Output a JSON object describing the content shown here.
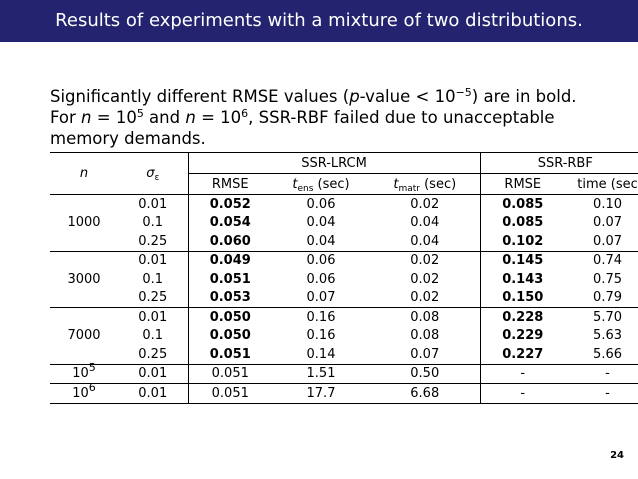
{
  "header": {
    "title": "Results of experiments with a mixture of two distributions."
  },
  "intro": {
    "lines": [
      [
        "Significantly different RMSE values (",
        "p",
        "-value < 10",
        "−5",
        ") are in bold."
      ],
      [
        "For ",
        "n",
        " = 10",
        "5",
        " and ",
        "n",
        " = 10",
        "6",
        ", SSR-RBF failed due to unacceptable"
      ],
      [
        "memory demands."
      ]
    ]
  },
  "table": {
    "header": {
      "n": "n",
      "sigma": [
        "σ",
        "ε"
      ],
      "groups": [
        "SSR-LRCM",
        "SSR-RBF"
      ],
      "columns": [
        [
          "RMSE"
        ],
        [
          "t",
          "ens",
          " (sec)"
        ],
        [
          "t",
          "matr",
          " (sec)"
        ],
        [
          "RMSE"
        ],
        [
          "time (sec"
        ]
      ]
    },
    "row_groups": [
      {
        "n": "1000",
        "bold_columns": [
          1,
          4
        ],
        "rows": [
          [
            "0.01",
            "0.052",
            "0.06",
            "0.02",
            "0.085",
            "0.10"
          ],
          [
            "0.1",
            "0.054",
            "0.04",
            "0.04",
            "0.085",
            "0.07"
          ],
          [
            "0.25",
            "0.060",
            "0.04",
            "0.04",
            "0.102",
            "0.07"
          ]
        ]
      },
      {
        "n": "3000",
        "bold_columns": [
          1,
          4
        ],
        "rows": [
          [
            "0.01",
            "0.049",
            "0.06",
            "0.02",
            "0.145",
            "0.74"
          ],
          [
            "0.1",
            "0.051",
            "0.06",
            "0.02",
            "0.143",
            "0.75"
          ],
          [
            "0.25",
            "0.053",
            "0.07",
            "0.02",
            "0.150",
            "0.79"
          ]
        ]
      },
      {
        "n": "7000",
        "bold_columns": [
          1,
          4
        ],
        "rows": [
          [
            "0.01",
            "0.050",
            "0.16",
            "0.08",
            "0.228",
            "5.70"
          ],
          [
            "0.1",
            "0.050",
            "0.16",
            "0.08",
            "0.229",
            "5.63"
          ],
          [
            "0.25",
            "0.051",
            "0.14",
            "0.07",
            "0.227",
            "5.66"
          ]
        ]
      }
    ],
    "rows": [
      {
        "n": [
          "10",
          "5"
        ],
        "cells": [
          "0.01",
          "0.051",
          "1.51",
          "0.50",
          "-",
          "-"
        ]
      },
      {
        "n": [
          "10",
          "6"
        ],
        "cells": [
          "0.01",
          "0.051",
          "17.7",
          "6.68",
          "-",
          "-"
        ]
      }
    ]
  },
  "footer": {
    "page_number": "24"
  }
}
